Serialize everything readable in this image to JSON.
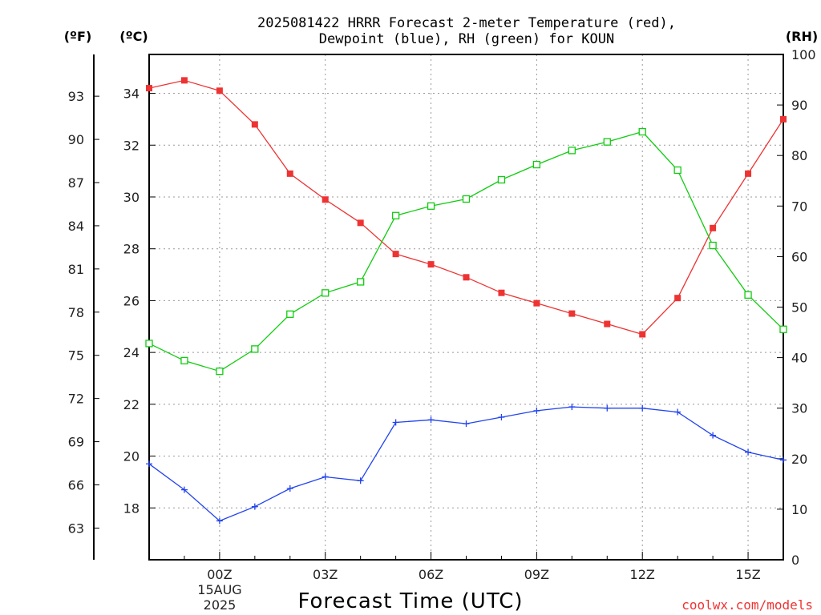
{
  "colors": {
    "temperature": "#ee3333",
    "dewpoint": "#2244ee",
    "rh": "#11cc11",
    "grid": "#999999",
    "credit": "#ee3333"
  },
  "chart_data": {
    "type": "line",
    "title_line1": "2025081422 HRRR Forecast 2-meter Temperature (red),",
    "title_line2": "Dewpoint (blue), RH (green) for KOUN",
    "xlabel": "Forecast Time (UTC)",
    "credit": "coolwx.com/models",
    "left_unit_f": "(ºF)",
    "left_unit_c": "(ºC)",
    "right_unit": "(RH)",
    "x_hours": [
      -2,
      -1,
      0,
      1,
      2,
      3,
      4,
      5,
      6,
      7,
      8,
      9,
      10,
      11,
      12,
      13,
      14,
      15,
      16
    ],
    "x_ticks": [
      {
        "hour": 0,
        "label": "00Z"
      },
      {
        "hour": 3,
        "label": "03Z"
      },
      {
        "hour": 6,
        "label": "06Z"
      },
      {
        "hour": 9,
        "label": "09Z"
      },
      {
        "hour": 12,
        "label": "12Z"
      },
      {
        "hour": 15,
        "label": "15Z"
      }
    ],
    "date_label_day": "15AUG",
    "date_label_year": "2025",
    "xlim": [
      -2,
      16
    ],
    "celsius_ticks": [
      18,
      20,
      22,
      24,
      26,
      28,
      30,
      32,
      34
    ],
    "celsius_ylim": [
      16.0,
      35.5
    ],
    "fahrenheit_ticks": [
      63,
      66,
      69,
      72,
      75,
      78,
      81,
      84,
      87,
      90,
      93
    ],
    "rh_ticks": [
      0,
      10,
      20,
      30,
      40,
      50,
      60,
      70,
      80,
      90,
      100
    ],
    "rh_ylim": [
      0,
      100
    ],
    "series": [
      {
        "name": "Temperature",
        "axis": "celsius",
        "marker": "filled-square",
        "values": [
          34.2,
          34.5,
          34.1,
          32.8,
          30.9,
          29.9,
          29.0,
          27.8,
          27.4,
          26.9,
          26.3,
          25.9,
          25.5,
          25.1,
          24.7,
          26.1,
          28.8,
          30.9,
          33.0
        ]
      },
      {
        "name": "Dewpoint",
        "axis": "celsius",
        "marker": "plus",
        "values": [
          19.7,
          18.7,
          17.5,
          18.05,
          18.75,
          19.2,
          19.05,
          21.3,
          21.4,
          21.25,
          21.5,
          21.75,
          21.9,
          21.85,
          21.85,
          21.7,
          20.8,
          20.15,
          19.85
        ]
      },
      {
        "name": "RH",
        "axis": "rh",
        "marker": "open-square",
        "values": [
          42.8,
          39.4,
          37.3,
          41.7,
          48.6,
          52.8,
          55.0,
          68.1,
          70.0,
          71.4,
          75.2,
          78.2,
          81.0,
          82.7,
          84.7,
          77.1,
          62.2,
          52.4,
          45.6
        ]
      }
    ]
  }
}
